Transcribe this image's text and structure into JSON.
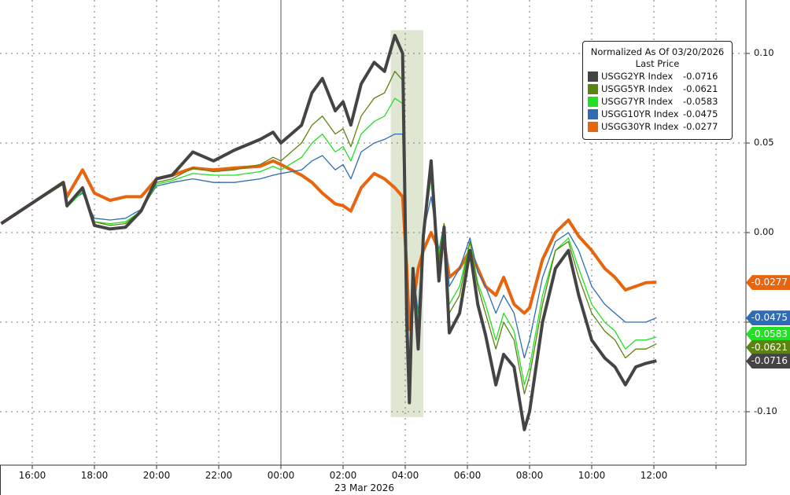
{
  "chart_data": {
    "type": "line",
    "title": "",
    "xlabel": "",
    "ylabel": "",
    "date_label": "23 Mar 2026",
    "x_tick_labels": [
      "16:00",
      "18:00",
      "20:00",
      "22:00",
      "00:00",
      "02:00",
      "04:00",
      "06:00",
      "08:00",
      "10:00",
      "12:00"
    ],
    "y_tick_labels": [
      "0.10",
      "0.05",
      "0.00",
      "-0.10"
    ],
    "y_gridlines": [
      0.1,
      0.05,
      0.0,
      -0.05,
      -0.1
    ],
    "ylim": [
      -0.13,
      0.13
    ],
    "grid": true,
    "y_axis_side": "right",
    "legend_placement": "top-right",
    "legend": {
      "title": "Normalized As Of 03/20/2026",
      "subtitle": "Last Price"
    },
    "highlight": {
      "from": "03:32",
      "to": "04:35",
      "y_range": [
        -0.103,
        0.113
      ],
      "color": "#dfe7d2"
    },
    "x": [
      "15:00",
      "17:00",
      "17:07",
      "17:37",
      "18:00",
      "18:30",
      "19:00",
      "19:30",
      "20:00",
      "20:30",
      "21:10",
      "21:50",
      "22:30",
      "23:20",
      "23:45",
      "00:00",
      "00:40",
      "01:00",
      "01:20",
      "01:45",
      "02:00",
      "02:15",
      "02:35",
      "03:00",
      "03:20",
      "03:40",
      "03:55",
      "04:03",
      "04:08",
      "04:15",
      "04:25",
      "04:35",
      "04:50",
      "05:05",
      "05:15",
      "05:25",
      "05:45",
      "06:05",
      "06:20",
      "06:35",
      "06:55",
      "07:10",
      "07:30",
      "07:50",
      "08:00",
      "08:25",
      "08:50",
      "09:15",
      "09:35",
      "10:00",
      "10:25",
      "10:45",
      "11:05",
      "11:25",
      "11:45",
      "12:05"
    ],
    "series": [
      {
        "name": "USGG30YR Index",
        "last": "-0.0277",
        "color": "#e8650f",
        "width": 4,
        "values": [
          0.005,
          0.028,
          0.02,
          0.035,
          0.022,
          0.018,
          0.02,
          0.02,
          0.03,
          0.032,
          0.036,
          0.035,
          0.036,
          0.037,
          0.04,
          0.038,
          0.032,
          0.028,
          0.022,
          0.016,
          0.015,
          0.012,
          0.025,
          0.033,
          0.03,
          0.025,
          0.02,
          -0.02,
          -0.054,
          -0.04,
          -0.02,
          -0.01,
          0.0,
          -0.01,
          -0.005,
          -0.025,
          -0.02,
          -0.01,
          -0.02,
          -0.03,
          -0.035,
          -0.025,
          -0.04,
          -0.045,
          -0.042,
          -0.015,
          0.0,
          0.007,
          -0.002,
          -0.01,
          -0.02,
          -0.025,
          -0.032,
          -0.03,
          -0.028,
          -0.0277
        ]
      },
      {
        "name": "USGG10YR Index",
        "last": "-0.0475",
        "color": "#2f6cb3",
        "width": 1.3,
        "values": [
          0.005,
          0.027,
          0.016,
          0.022,
          0.008,
          0.007,
          0.008,
          0.013,
          0.026,
          0.028,
          0.03,
          0.028,
          0.028,
          0.03,
          0.032,
          0.033,
          0.035,
          0.04,
          0.043,
          0.035,
          0.038,
          0.03,
          0.045,
          0.05,
          0.052,
          0.055,
          0.055,
          -0.03,
          -0.08,
          -0.02,
          -0.045,
          0.0,
          0.02,
          -0.01,
          0.005,
          -0.03,
          -0.02,
          -0.003,
          -0.022,
          -0.03,
          -0.045,
          -0.035,
          -0.045,
          -0.07,
          -0.06,
          -0.025,
          -0.005,
          0.0,
          -0.01,
          -0.03,
          -0.04,
          -0.045,
          -0.05,
          -0.05,
          -0.05,
          -0.0475
        ]
      },
      {
        "name": "USGG7YR Index",
        "last": "-0.0583",
        "color": "#22e022",
        "width": 1.3,
        "values": [
          0.005,
          0.027,
          0.014,
          0.023,
          0.006,
          0.005,
          0.006,
          0.012,
          0.027,
          0.029,
          0.033,
          0.032,
          0.032,
          0.034,
          0.037,
          0.035,
          0.042,
          0.05,
          0.055,
          0.045,
          0.048,
          0.04,
          0.055,
          0.062,
          0.065,
          0.075,
          0.072,
          -0.035,
          -0.085,
          -0.02,
          -0.05,
          0.0,
          0.03,
          -0.012,
          0.005,
          -0.04,
          -0.03,
          -0.005,
          -0.028,
          -0.04,
          -0.06,
          -0.045,
          -0.055,
          -0.085,
          -0.075,
          -0.035,
          -0.01,
          -0.003,
          -0.02,
          -0.04,
          -0.05,
          -0.055,
          -0.065,
          -0.06,
          -0.06,
          -0.0583
        ]
      },
      {
        "name": "USGG5YR Index",
        "last": "-0.0621",
        "color": "#5a840f",
        "width": 1.3,
        "values": [
          0.005,
          0.027,
          0.016,
          0.024,
          0.006,
          0.004,
          0.005,
          0.012,
          0.028,
          0.03,
          0.036,
          0.034,
          0.035,
          0.038,
          0.042,
          0.04,
          0.05,
          0.06,
          0.065,
          0.055,
          0.058,
          0.048,
          0.065,
          0.075,
          0.078,
          0.09,
          0.085,
          -0.04,
          -0.09,
          -0.02,
          -0.055,
          0.0,
          0.035,
          -0.015,
          0.005,
          -0.045,
          -0.035,
          -0.005,
          -0.03,
          -0.045,
          -0.065,
          -0.05,
          -0.06,
          -0.09,
          -0.08,
          -0.04,
          -0.01,
          -0.005,
          -0.025,
          -0.045,
          -0.055,
          -0.06,
          -0.07,
          -0.065,
          -0.065,
          -0.0621
        ]
      },
      {
        "name": "USGG2YR Index",
        "last": "-0.0716",
        "color": "#444444",
        "width": 4,
        "values": [
          0.005,
          0.028,
          0.015,
          0.025,
          0.004,
          0.002,
          0.003,
          0.012,
          0.03,
          0.032,
          0.045,
          0.04,
          0.046,
          0.052,
          0.056,
          0.05,
          0.06,
          0.078,
          0.086,
          0.068,
          0.073,
          0.06,
          0.083,
          0.095,
          0.09,
          0.11,
          0.1,
          -0.05,
          -0.095,
          -0.02,
          -0.065,
          -0.002,
          0.04,
          -0.027,
          0.003,
          -0.056,
          -0.045,
          -0.01,
          -0.04,
          -0.057,
          -0.085,
          -0.068,
          -0.075,
          -0.11,
          -0.1,
          -0.05,
          -0.02,
          -0.01,
          -0.035,
          -0.06,
          -0.07,
          -0.075,
          -0.085,
          -0.075,
          -0.073,
          -0.0716
        ]
      }
    ],
    "legend_order": [
      "USGG2YR Index",
      "USGG5YR Index",
      "USGG7YR Index",
      "USGG10YR Index",
      "USGG30YR Index"
    ]
  }
}
